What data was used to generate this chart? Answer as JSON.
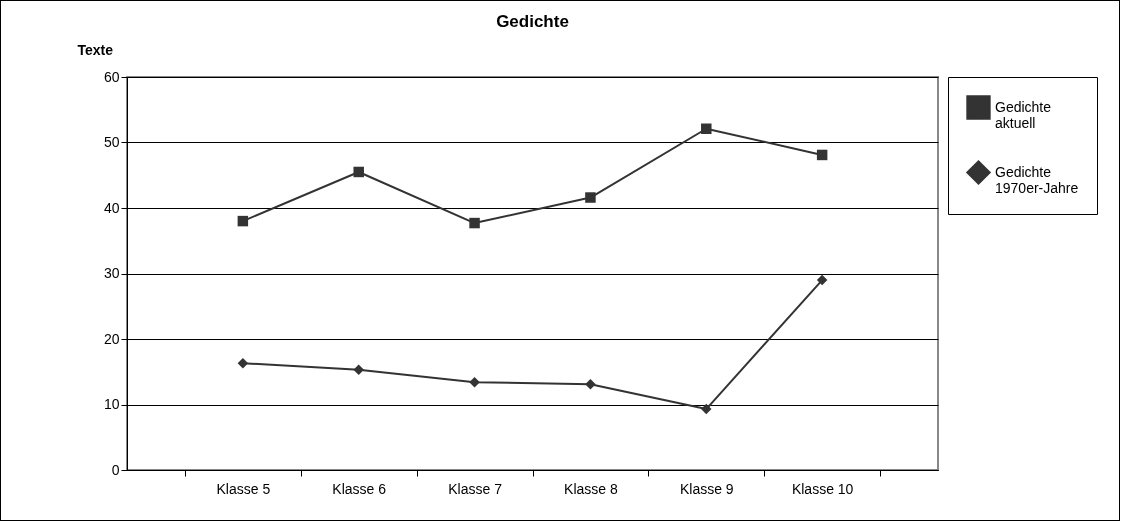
{
  "chart_data": {
    "type": "line",
    "title": "Gedichte",
    "ylabel": "Texte",
    "categories": [
      "Klasse 5",
      "Klasse 6",
      "Klasse 7",
      "Klasse 8",
      "Klasse 9",
      "Klasse 10"
    ],
    "series": [
      {
        "name": "Gedichte aktuell",
        "color": "#333333",
        "marker": "square",
        "values": [
          38.0,
          45.5,
          37.7,
          41.6,
          52.1,
          48.1
        ]
      },
      {
        "name": "Gedichte 1970er-Jahre",
        "color": "#333333",
        "marker": "diamond",
        "values": [
          16.3,
          15.3,
          13.4,
          13.1,
          9.3,
          29.0
        ]
      }
    ],
    "ylim": [
      0,
      60
    ],
    "yticks": [
      0,
      10,
      20,
      30,
      40,
      50,
      60
    ],
    "grid": "y",
    "legend": "right"
  }
}
